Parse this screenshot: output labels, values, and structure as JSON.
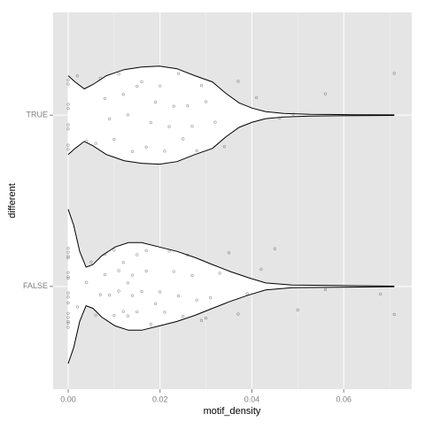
{
  "chart_data": {
    "type": "violin",
    "x_label": "motif_density",
    "y_label": "different",
    "categories": [
      "FALSE",
      "TRUE"
    ],
    "xlim": [
      -0.00328,
      0.0748
    ],
    "xticks": [
      {
        "value": 0,
        "label": "0.00"
      },
      {
        "value": 0.02,
        "label": "0.02"
      },
      {
        "value": 0.04,
        "label": "0.04"
      },
      {
        "value": 0.06,
        "label": "0.06"
      }
    ],
    "xminorticks": [
      0.01,
      0.03,
      0.05,
      0.07
    ],
    "grid": true,
    "panel_color": "#e5e5e5",
    "point_color": "#555555",
    "violins": [
      {
        "x": [
          0,
          0.0012,
          0.0025,
          0.0039,
          0.0054,
          0.0073,
          0.0102,
          0.0131,
          0.016,
          0.0199,
          0.0237,
          0.0276,
          0.0314,
          0.0353,
          0.0392,
          0.043,
          0.0488,
          0.0584,
          0.071
        ],
        "density": [
          88,
          70,
          40,
          22,
          25,
          35,
          45,
          50,
          50,
          45,
          40,
          33,
          25,
          17,
          10,
          4,
          1.5,
          1,
          0.3
        ],
        "points": [
          0,
          0,
          0,
          0,
          0,
          0,
          0,
          0,
          0,
          0,
          0,
          0,
          0,
          0,
          0,
          0.002,
          0.004,
          0.005,
          0.006,
          0.007,
          0.008,
          0.008,
          0.009,
          0.01,
          0.01,
          0.011,
          0.011,
          0.012,
          0.012,
          0.013,
          0.013,
          0.014,
          0.014,
          0.015,
          0.015,
          0.016,
          0.017,
          0.017,
          0.018,
          0.019,
          0.02,
          0.021,
          0.022,
          0.023,
          0.024,
          0.025,
          0.026,
          0.027,
          0.028,
          0.029,
          0.03,
          0.031,
          0.033,
          0.035,
          0.037,
          0.039,
          0.042,
          0.045,
          0.05,
          0.056,
          0.068,
          0.071
        ]
      },
      {
        "x": [
          0,
          0.0015,
          0.0035,
          0.0054,
          0.0083,
          0.0122,
          0.016,
          0.0199,
          0.0237,
          0.0276,
          0.0314,
          0.0343,
          0.0372,
          0.0401,
          0.043,
          0.0469,
          0.0527,
          0.0623,
          0.071
        ],
        "density": [
          45,
          38,
          30,
          35,
          45,
          52,
          55,
          56,
          53,
          45,
          38,
          25,
          14,
          8,
          4,
          2,
          1,
          0.5,
          0.3
        ],
        "points": [
          0,
          0,
          0,
          0,
          0,
          0,
          0,
          0,
          0.002,
          0.004,
          0.006,
          0.007,
          0.008,
          0.009,
          0.01,
          0.011,
          0.012,
          0.013,
          0.014,
          0.015,
          0.016,
          0.017,
          0.018,
          0.019,
          0.02,
          0.021,
          0.022,
          0.023,
          0.024,
          0.025,
          0.026,
          0.027,
          0.028,
          0.029,
          0.03,
          0.032,
          0.034,
          0.037,
          0.041,
          0.046,
          0.049,
          0.056,
          0.071
        ]
      }
    ]
  }
}
